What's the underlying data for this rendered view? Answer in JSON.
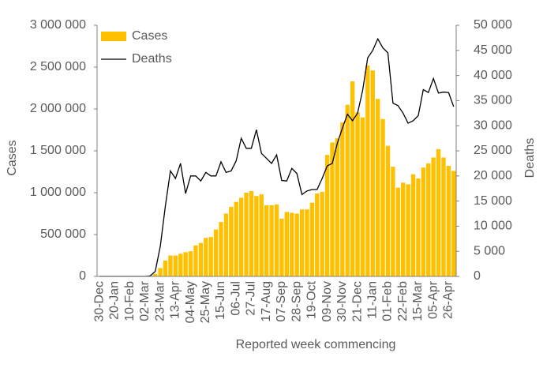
{
  "chart_data": {
    "type": "bar_line",
    "x_label": "Reported week commencing",
    "y_label": "Cases",
    "y2_label": "Deaths",
    "categories": [
      "30-Dec",
      null,
      null,
      "20-Jan",
      null,
      null,
      "10-Feb",
      null,
      null,
      "02-Mar",
      null,
      null,
      "23-Mar",
      null,
      null,
      "13-Apr",
      null,
      null,
      "04-May",
      null,
      null,
      "25-May",
      null,
      null,
      "15-Jun",
      null,
      null,
      "06-Jul",
      null,
      null,
      "27-Jul",
      null,
      null,
      "17-Aug",
      null,
      null,
      "07-Sep",
      null,
      null,
      "28-Sep",
      null,
      null,
      "19-Oct",
      null,
      null,
      "09-Nov",
      null,
      null,
      "30-Nov",
      null,
      null,
      "21-Dec",
      null,
      null,
      "11-Jan",
      null,
      null,
      "01-Feb",
      null,
      null,
      "22-Feb",
      null,
      null,
      "15-Mar",
      null,
      null,
      "05-Apr",
      null,
      null,
      "26-Apr",
      null
    ],
    "series": [
      {
        "name": "Cases",
        "type": "bar",
        "color": "#ffc000",
        "axis": "y",
        "values": [
          0,
          0,
          0,
          0,
          0,
          0,
          0,
          0,
          0,
          0,
          5000,
          30000,
          100000,
          190000,
          250000,
          250000,
          270000,
          290000,
          300000,
          370000,
          400000,
          460000,
          470000,
          560000,
          650000,
          750000,
          830000,
          890000,
          940000,
          1000000,
          1020000,
          960000,
          980000,
          850000,
          850000,
          860000,
          690000,
          770000,
          760000,
          750000,
          800000,
          800000,
          880000,
          990000,
          1010000,
          1450000,
          1600000,
          1650000,
          1840000,
          2050000,
          2330000,
          1960000,
          1900000,
          2520000,
          2460000,
          2120000,
          1880000,
          1560000,
          1310000,
          1060000,
          1120000,
          1100000,
          1220000,
          1170000,
          1300000,
          1350000,
          1420000,
          1520000,
          1420000,
          1320000,
          1260000
        ]
      },
      {
        "name": "Deaths",
        "type": "line",
        "color": "#000000",
        "axis": "y2",
        "values": [
          0,
          0,
          0,
          0,
          0,
          0,
          0,
          0,
          0,
          0,
          100,
          1000,
          6000,
          14000,
          21000,
          19500,
          22500,
          16500,
          20000,
          20000,
          19000,
          20700,
          20000,
          20000,
          22800,
          20700,
          21000,
          23000,
          27500,
          25500,
          25500,
          29200,
          24500,
          23500,
          22500,
          24200,
          19100,
          19000,
          21500,
          20500,
          16300,
          17000,
          17300,
          17300,
          19500,
          22000,
          22500,
          26500,
          29500,
          32300,
          31000,
          32500,
          37000,
          43500,
          45000,
          47300,
          45500,
          44500,
          34500,
          34000,
          32500,
          30500,
          31000,
          32000,
          37200,
          36600,
          39400,
          36500,
          36700,
          36600,
          33800
        ]
      }
    ],
    "ylim": [
      0,
      3000000
    ],
    "yticks": [
      0,
      {
        "value": 500000,
        "label": "500 000"
      },
      {
        "value": 1000000,
        "label": "1 000 000"
      },
      {
        "value": 1500000,
        "label": "1 500 000"
      },
      {
        "value": 2000000,
        "label": "2 000 000"
      },
      {
        "value": 2500000,
        "label": "2 500 000"
      },
      {
        "value": 3000000,
        "label": "3 000 000"
      }
    ],
    "y2lim": [
      0,
      50000
    ],
    "y2ticks": [
      0,
      {
        "value": 5000,
        "label": "5 000"
      },
      {
        "value": 10000,
        "label": "10 000"
      },
      {
        "value": 15000,
        "label": "15 000"
      },
      {
        "value": 20000,
        "label": "20 000"
      },
      {
        "value": 25000,
        "label": "25 000"
      },
      {
        "value": 30000,
        "label": "30 000"
      },
      {
        "value": 35000,
        "label": "35 000"
      },
      {
        "value": 40000,
        "label": "40 000"
      },
      {
        "value": 45000,
        "label": "45 000"
      },
      {
        "value": 50000,
        "label": "50 000"
      }
    ],
    "legend": "upper left"
  }
}
